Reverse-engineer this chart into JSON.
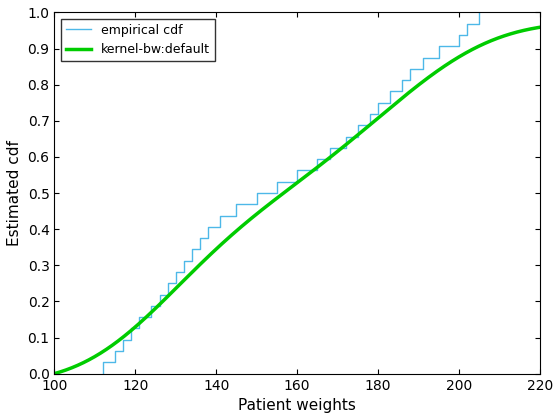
{
  "xlabel": "Patient weights",
  "ylabel": "Estimated cdf",
  "xlim": [
    100,
    220
  ],
  "ylim": [
    0,
    1
  ],
  "xticks": [
    100,
    120,
    140,
    160,
    180,
    200,
    220
  ],
  "yticks": [
    0,
    0.1,
    0.2,
    0.3,
    0.4,
    0.5,
    0.6,
    0.7,
    0.8,
    0.9,
    1.0
  ],
  "legend_labels": [
    "empirical cdf",
    "kernel-bw:default"
  ],
  "empirical_color": "#4db8e8",
  "kernel_color": "#00cc00",
  "kernel_linewidth": 2.5,
  "empirical_linewidth": 1.0,
  "patient_weights": [
    112,
    115,
    117,
    119,
    121,
    124,
    126,
    128,
    130,
    132,
    134,
    136,
    138,
    141,
    145,
    150,
    155,
    160,
    165,
    168,
    172,
    175,
    178,
    180,
    183,
    186,
    188,
    191,
    195,
    200,
    202,
    205
  ],
  "background_color": "#ffffff",
  "legend_loc": "upper left",
  "title": ""
}
